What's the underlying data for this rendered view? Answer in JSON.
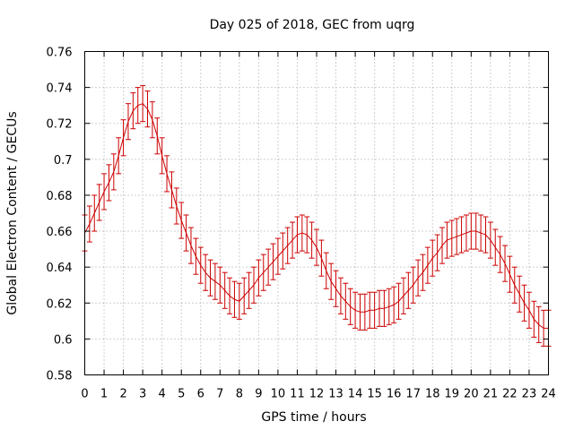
{
  "chart_data": {
    "type": "line",
    "title": "Day 025 of 2018, GEC from uqrg",
    "xlabel": "GPS time / hours",
    "ylabel": "Global Electron Content / GECUs",
    "xlim": [
      0,
      24
    ],
    "ylim": [
      0.58,
      0.76
    ],
    "xticks": [
      "0",
      "1",
      "2",
      "3",
      "4",
      "5",
      "6",
      "7",
      "8",
      "9",
      "10",
      "11",
      "12",
      "13",
      "14",
      "15",
      "16",
      "17",
      "18",
      "19",
      "20",
      "21",
      "22",
      "23",
      "24"
    ],
    "yticks": [
      "0.58",
      "0.6",
      "0.62",
      "0.64",
      "0.66",
      "0.68",
      "0.7",
      "0.72",
      "0.74",
      "0.76"
    ],
    "grid": true,
    "colors": {
      "series": "#cc0000"
    },
    "series": [
      {
        "name": "",
        "error": 0.01,
        "x": [
          0,
          0.25,
          0.5,
          0.75,
          1,
          1.25,
          1.5,
          1.75,
          2,
          2.25,
          2.5,
          2.75,
          3,
          3.25,
          3.5,
          3.75,
          4,
          4.25,
          4.5,
          4.75,
          5,
          5.25,
          5.5,
          5.75,
          6,
          6.25,
          6.5,
          6.75,
          7,
          7.25,
          7.5,
          7.75,
          8,
          8.25,
          8.5,
          8.75,
          9,
          9.25,
          9.5,
          9.75,
          10,
          10.25,
          10.5,
          10.75,
          11,
          11.25,
          11.5,
          11.75,
          12,
          12.25,
          12.5,
          12.75,
          13,
          13.25,
          13.5,
          13.75,
          14,
          14.25,
          14.5,
          14.75,
          15,
          15.25,
          15.5,
          15.75,
          16,
          16.25,
          16.5,
          16.75,
          17,
          17.25,
          17.5,
          17.75,
          18,
          18.25,
          18.5,
          18.75,
          19,
          19.25,
          19.5,
          19.75,
          20,
          20.25,
          20.5,
          20.75,
          21,
          21.25,
          21.5,
          21.75,
          22,
          22.25,
          22.5,
          22.75,
          23,
          23.25,
          23.5,
          23.75,
          24
        ],
        "y": [
          0.659,
          0.664,
          0.67,
          0.676,
          0.682,
          0.687,
          0.693,
          0.702,
          0.712,
          0.721,
          0.727,
          0.73,
          0.731,
          0.728,
          0.722,
          0.713,
          0.702,
          0.692,
          0.683,
          0.674,
          0.666,
          0.659,
          0.652,
          0.646,
          0.641,
          0.637,
          0.634,
          0.632,
          0.63,
          0.627,
          0.624,
          0.622,
          0.621,
          0.624,
          0.627,
          0.63,
          0.634,
          0.637,
          0.64,
          0.643,
          0.646,
          0.649,
          0.652,
          0.655,
          0.658,
          0.659,
          0.658,
          0.655,
          0.651,
          0.645,
          0.638,
          0.632,
          0.628,
          0.624,
          0.621,
          0.618,
          0.616,
          0.615,
          0.615,
          0.616,
          0.616,
          0.617,
          0.617,
          0.618,
          0.619,
          0.621,
          0.624,
          0.627,
          0.63,
          0.634,
          0.637,
          0.641,
          0.645,
          0.648,
          0.652,
          0.655,
          0.656,
          0.657,
          0.658,
          0.659,
          0.66,
          0.66,
          0.659,
          0.658,
          0.655,
          0.651,
          0.647,
          0.642,
          0.636,
          0.63,
          0.625,
          0.62,
          0.616,
          0.611,
          0.608,
          0.606,
          0.606
        ]
      }
    ]
  }
}
